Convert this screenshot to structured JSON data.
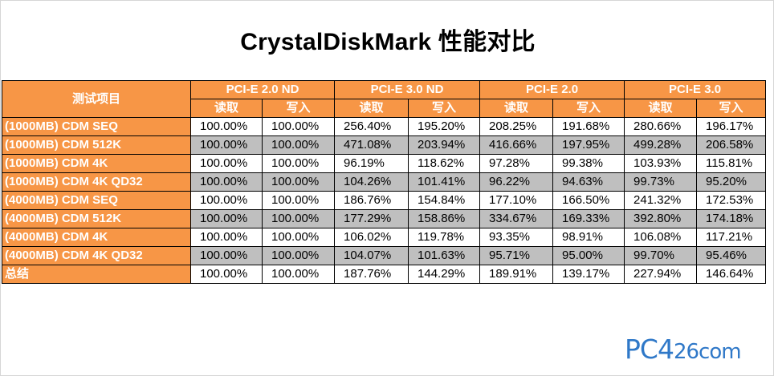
{
  "title": "CrystalDiskMark 性能对比",
  "table": {
    "corner_label": "测试项目",
    "groups": [
      {
        "name": "PCI-E 2.0 ND",
        "sub": [
          "读取",
          "写入"
        ]
      },
      {
        "name": "PCI-E 3.0 ND",
        "sub": [
          "读取",
          "写入"
        ]
      },
      {
        "name": "PCI-E 2.0",
        "sub": [
          "读取",
          "写入"
        ]
      },
      {
        "name": "PCI-E 3.0",
        "sub": [
          "读取",
          "写入"
        ]
      }
    ],
    "rows": [
      {
        "label": "(1000MB) CDM SEQ",
        "values": [
          "100.00%",
          "100.00%",
          "256.40%",
          "195.20%",
          "208.25%",
          "191.68%",
          "280.66%",
          "196.17%"
        ]
      },
      {
        "label": "(1000MB) CDM 512K",
        "values": [
          "100.00%",
          "100.00%",
          "471.08%",
          "203.94%",
          "416.66%",
          "197.95%",
          "499.28%",
          "206.58%"
        ]
      },
      {
        "label": "(1000MB) CDM 4K",
        "values": [
          "100.00%",
          "100.00%",
          "96.19%",
          "118.62%",
          "97.28%",
          "99.38%",
          "103.93%",
          "115.81%"
        ]
      },
      {
        "label": "(1000MB) CDM 4K QD32",
        "values": [
          "100.00%",
          "100.00%",
          "104.26%",
          "101.41%",
          "96.22%",
          "94.63%",
          "99.73%",
          "95.20%"
        ]
      },
      {
        "label": "(4000MB) CDM SEQ",
        "values": [
          "100.00%",
          "100.00%",
          "186.76%",
          "154.84%",
          "177.10%",
          "166.50%",
          "241.32%",
          "172.53%"
        ]
      },
      {
        "label": "(4000MB) CDM 512K",
        "values": [
          "100.00%",
          "100.00%",
          "177.29%",
          "158.86%",
          "334.67%",
          "169.33%",
          "392.80%",
          "174.18%"
        ]
      },
      {
        "label": "(4000MB) CDM 4K",
        "values": [
          "100.00%",
          "100.00%",
          "106.02%",
          "119.78%",
          "93.35%",
          "98.91%",
          "106.08%",
          "117.21%"
        ]
      },
      {
        "label": "(4000MB) CDM 4K QD32",
        "values": [
          "100.00%",
          "100.00%",
          "104.07%",
          "101.63%",
          "95.71%",
          "95.00%",
          "99.70%",
          "95.46%"
        ]
      },
      {
        "label": "总结",
        "values": [
          "100.00%",
          "100.00%",
          "187.76%",
          "144.29%",
          "189.91%",
          "139.17%",
          "227.94%",
          "146.64%"
        ]
      }
    ]
  },
  "watermark": {
    "text_main": "PC4",
    "text_digits": "26",
    "text_tail": "com",
    "color": "#2f78c8"
  },
  "colors": {
    "header_orange": "#f79646",
    "shade_gray": "#bfbfbf"
  }
}
